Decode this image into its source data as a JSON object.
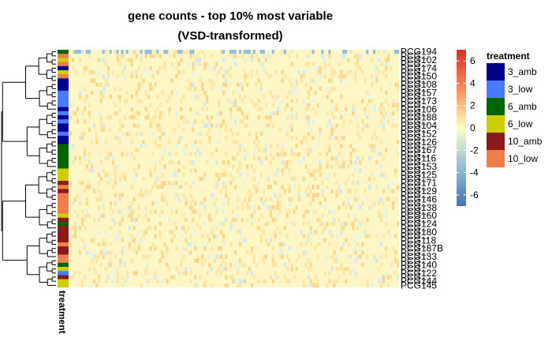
{
  "chart_data": {
    "type": "heatmap",
    "title_line1": "gene counts - top 10% most variable",
    "title_line2": "(VSD-transformed)",
    "annotation_track_label": "treatment",
    "value_range": [
      -7,
      7
    ],
    "colorbar_ticks": [
      6,
      4,
      2,
      0,
      -2,
      -4,
      -6
    ],
    "colorbar_tick_labels": [
      "6",
      "4",
      "2",
      "0",
      "-2",
      "-4",
      "-6"
    ],
    "colors": {
      "low": "#4575b4",
      "mid": "#ffffbf",
      "high": "#d73027"
    },
    "legend": {
      "title": "treatment",
      "items": [
        {
          "label": "3_amb",
          "color": "#00008b"
        },
        {
          "label": "3_low",
          "color": "#4a7aff"
        },
        {
          "label": "6_amb",
          "color": "#006400"
        },
        {
          "label": "6_low",
          "color": "#cdcd00"
        },
        {
          "label": "10_amb",
          "color": "#8b1a1a"
        },
        {
          "label": "10_low",
          "color": "#ee7f4b"
        }
      ]
    },
    "rows": [
      {
        "label": "PCG194",
        "treatment": "6_amb"
      },
      {
        "label": "PCG...",
        "treatment": "10_low"
      },
      {
        "label": "PCG102",
        "treatment": "6_low"
      },
      {
        "label": "PCG...",
        "treatment": "10_low"
      },
      {
        "label": "PCG174",
        "treatment": "3_amb"
      },
      {
        "label": "PCG...",
        "treatment": "6_low"
      },
      {
        "label": "PCG150",
        "treatment": "10_low"
      },
      {
        "label": "PCG...",
        "treatment": "3_amb"
      },
      {
        "label": "PCG108",
        "treatment": "3_amb"
      },
      {
        "label": "PCG...",
        "treatment": "3_amb"
      },
      {
        "label": "PCG157",
        "treatment": "3_low"
      },
      {
        "label": "PCG...",
        "treatment": "3_low"
      },
      {
        "label": "PCG173",
        "treatment": "3_low"
      },
      {
        "label": "PCG...",
        "treatment": "3_low"
      },
      {
        "label": "PCG106",
        "treatment": "3_amb"
      },
      {
        "label": "PCG...",
        "treatment": "3_low"
      },
      {
        "label": "PCG188",
        "treatment": "3_amb"
      },
      {
        "label": "PCG...",
        "treatment": "3_low"
      },
      {
        "label": "PCG104",
        "treatment": "3_amb"
      },
      {
        "label": "PCG...",
        "treatment": "3_amb"
      },
      {
        "label": "PCG152",
        "treatment": "3_low"
      },
      {
        "label": "PCG...",
        "treatment": "3_amb"
      },
      {
        "label": "PCG126",
        "treatment": "3_amb"
      },
      {
        "label": "PCG...",
        "treatment": "6_amb"
      },
      {
        "label": "PCG167",
        "treatment": "6_amb"
      },
      {
        "label": "PCG...",
        "treatment": "6_amb"
      },
      {
        "label": "PCG116",
        "treatment": "6_amb"
      },
      {
        "label": "PCG...",
        "treatment": "6_amb"
      },
      {
        "label": "PCG153",
        "treatment": "6_amb"
      },
      {
        "label": "PCG...",
        "treatment": "6_low"
      },
      {
        "label": "PCG125",
        "treatment": "6_low"
      },
      {
        "label": "PCG...",
        "treatment": "6_low"
      },
      {
        "label": "PCG171",
        "treatment": "10_amb"
      },
      {
        "label": "PCG...",
        "treatment": "10_low"
      },
      {
        "label": "PCG129",
        "treatment": "10_amb"
      },
      {
        "label": "PCG...",
        "treatment": "10_low"
      },
      {
        "label": "PCG146",
        "treatment": "10_low"
      },
      {
        "label": "PCG...",
        "treatment": "10_low"
      },
      {
        "label": "PCG138",
        "treatment": "10_low"
      },
      {
        "label": "PCG...",
        "treatment": "10_low"
      },
      {
        "label": "PCG160",
        "treatment": "6_low"
      },
      {
        "label": "PCG...",
        "treatment": "10_amb"
      },
      {
        "label": "PCG124",
        "treatment": "6_amb"
      },
      {
        "label": "PCG...",
        "treatment": "10_amb"
      },
      {
        "label": "PCG180",
        "treatment": "10_amb"
      },
      {
        "label": "PCG...",
        "treatment": "10_amb"
      },
      {
        "label": "PCG118",
        "treatment": "10_amb"
      },
      {
        "label": "PCG...",
        "treatment": "10_low"
      },
      {
        "label": "PCG187B",
        "treatment": "10_amb"
      },
      {
        "label": "PCG...",
        "treatment": "10_amb"
      },
      {
        "label": "PCG133",
        "treatment": "10_low"
      },
      {
        "label": "PCG...",
        "treatment": "10_low"
      },
      {
        "label": "PCG140",
        "treatment": "6_amb"
      },
      {
        "label": "PCG...",
        "treatment": "6_low"
      },
      {
        "label": "PCG122",
        "treatment": "3_low"
      },
      {
        "label": "PCG...",
        "treatment": "10_amb"
      },
      {
        "label": "PCG144",
        "treatment": "6_low"
      },
      {
        "label": "PCG145",
        "treatment": "6_low"
      }
    ]
  }
}
